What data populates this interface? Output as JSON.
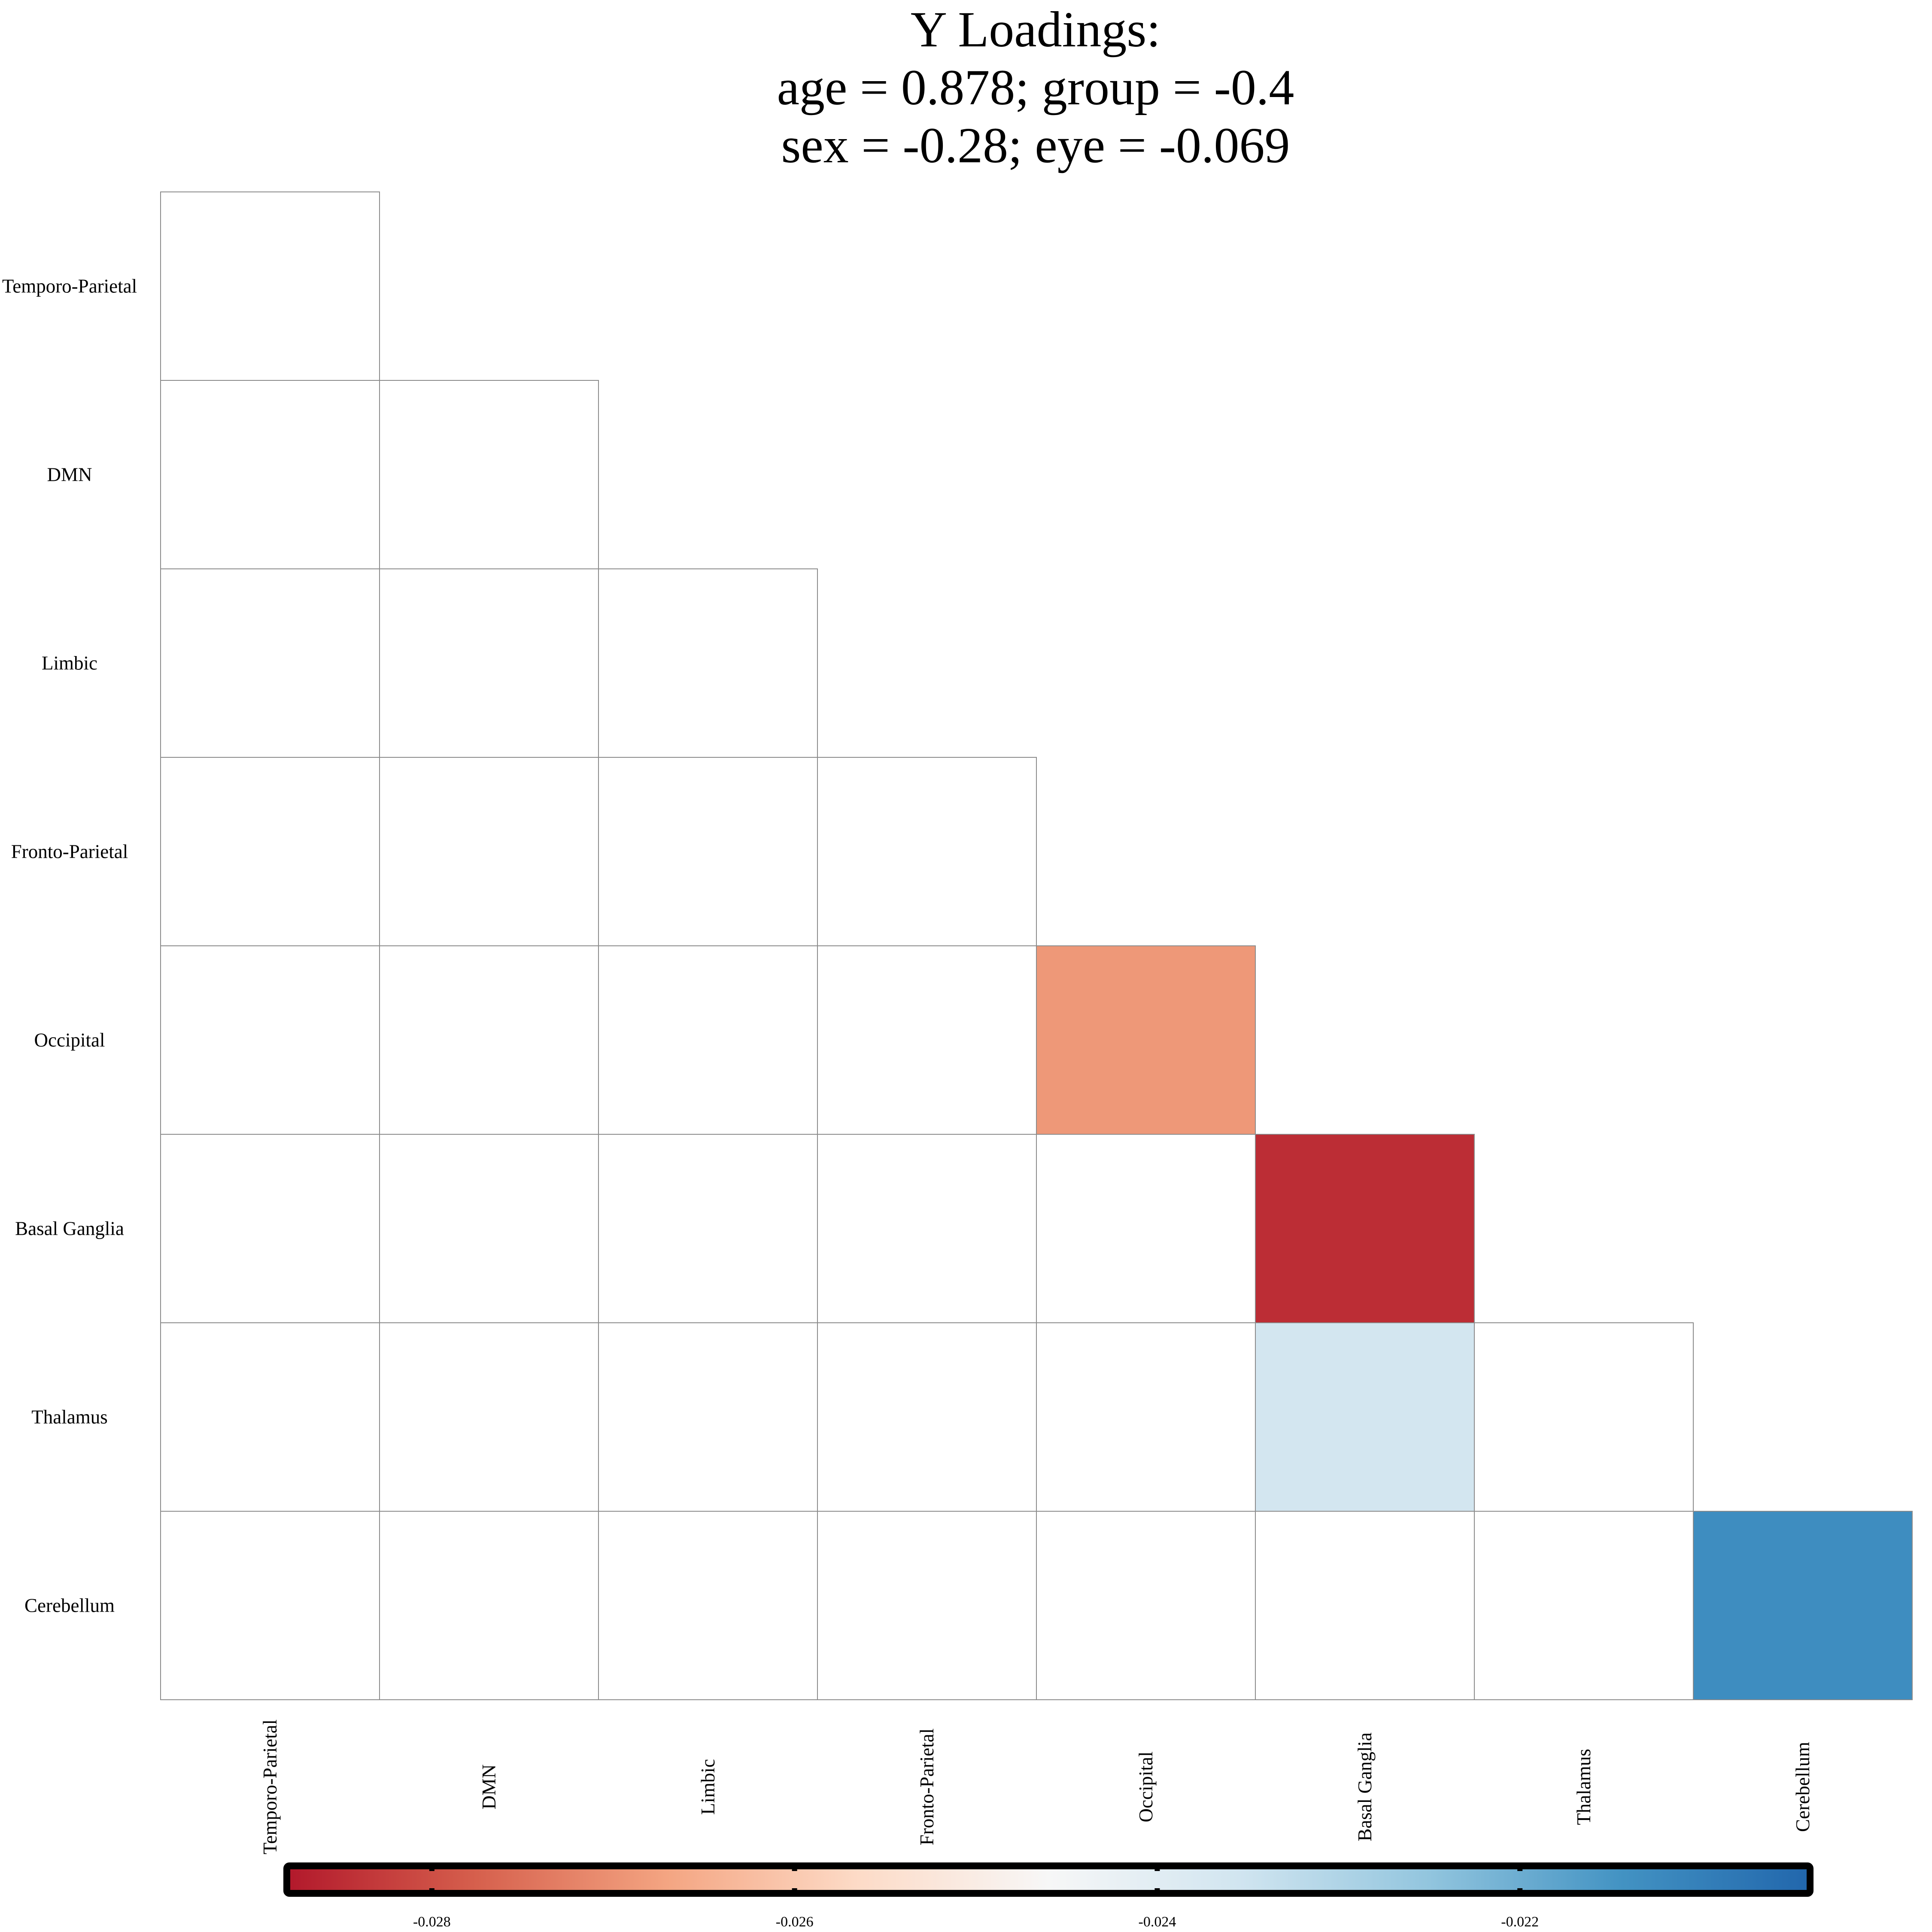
{
  "chart_data": {
    "type": "heatmap",
    "title": [
      "Y Loadings:",
      "age = 0.878; group = -0.4",
      "sex = -0.28; eye = -0.069"
    ],
    "layout": "lower-triangular",
    "rows": [
      "Temporo-Parietal",
      "DMN",
      "Limbic",
      "Fronto-Parietal",
      "Occipital",
      "Basal Ganglia",
      "Thalamus",
      "Cerebellum"
    ],
    "columns": [
      "Temporo-Parietal",
      "DMN",
      "Limbic",
      "Fronto-Parietal",
      "Occipital",
      "Basal Ganglia",
      "Thalamus",
      "Cerebellum"
    ],
    "cells": [
      {
        "row": "Occipital",
        "col": "Occipital",
        "value": -0.0269
      },
      {
        "row": "Basal Ganglia",
        "col": "Basal Ganglia",
        "value": -0.0285
      },
      {
        "row": "Thalamus",
        "col": "Basal Ganglia",
        "value": -0.0236
      },
      {
        "row": "Cerebellum",
        "col": "Cerebellum",
        "value": -0.0213
      }
    ],
    "colorbar": {
      "range": [
        -0.0288,
        -0.0204
      ],
      "ticks": [
        -0.028,
        -0.026,
        -0.024,
        -0.022
      ],
      "tick_labels": [
        "-0.028",
        "-0.026",
        "-0.024",
        "-0.022"
      ],
      "colormap": "RdBu",
      "stops": [
        "#b2182b",
        "#d6604d",
        "#f4a582",
        "#fddbc7",
        "#f7f7f7",
        "#d1e5f0",
        "#92c5de",
        "#4393c3",
        "#2166ac"
      ]
    },
    "grid": true,
    "legend": "bottom"
  }
}
